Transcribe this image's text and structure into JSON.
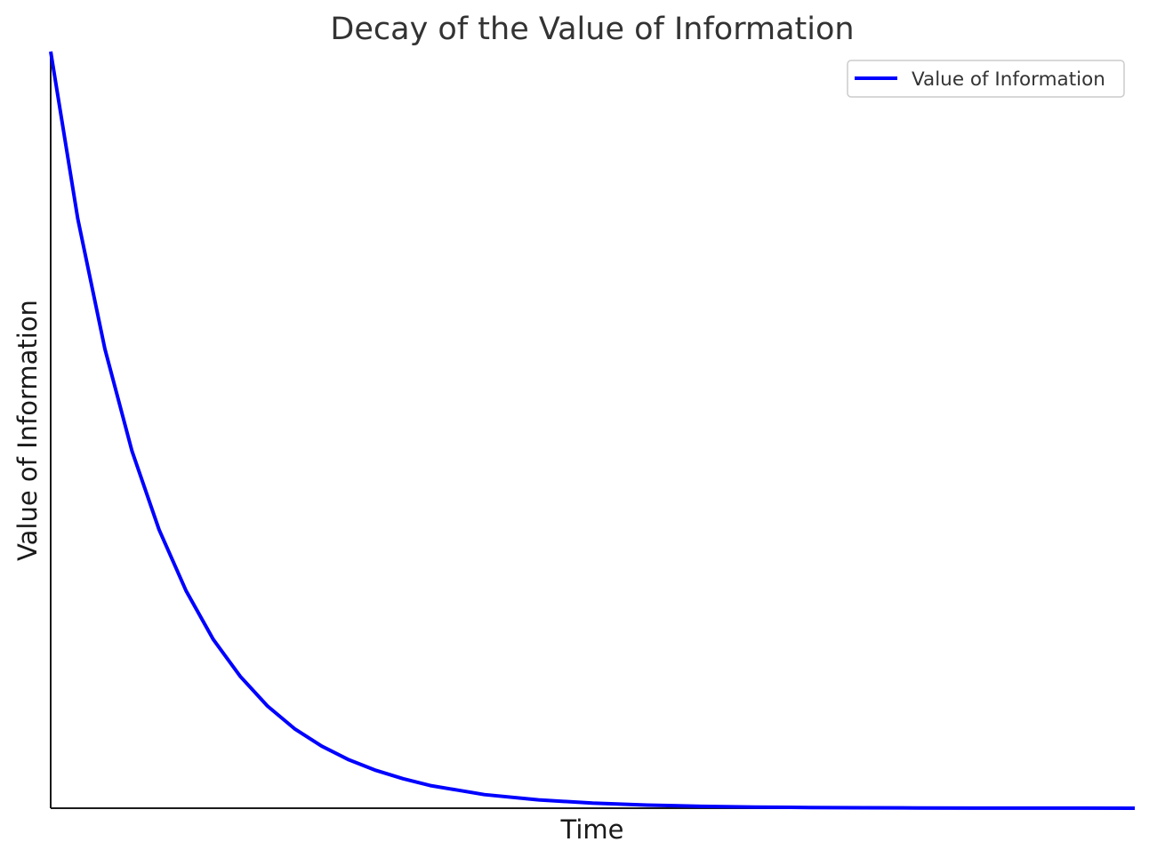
{
  "chart_data": {
    "type": "line",
    "title": "Decay of the Value of Information",
    "xlabel": "Time",
    "ylabel": "Value of Information",
    "x_ticks_shown": false,
    "y_ticks_shown": false,
    "grid": false,
    "legend_position": "top-right",
    "xlim": [
      0,
      10
    ],
    "ylim": [
      0,
      1
    ],
    "series": [
      {
        "name": "Value of Information",
        "color": "#0000ff",
        "x": [
          0,
          0.25,
          0.5,
          0.75,
          1,
          1.25,
          1.5,
          1.75,
          2,
          2.25,
          2.5,
          2.75,
          3,
          3.25,
          3.5,
          3.75,
          4,
          4.5,
          5,
          5.5,
          6,
          6.5,
          7,
          7.5,
          8,
          8.5,
          9,
          9.5,
          10
        ],
        "y": [
          1.0,
          0.779,
          0.607,
          0.472,
          0.368,
          0.287,
          0.223,
          0.174,
          0.135,
          0.105,
          0.082,
          0.064,
          0.05,
          0.039,
          0.03,
          0.024,
          0.018,
          0.011,
          0.0067,
          0.0041,
          0.0025,
          0.0015,
          0.0009,
          0.0006,
          0.0003,
          0.0002,
          0.0001,
          0.0001,
          0.0
        ]
      }
    ]
  },
  "colors": {
    "axis": "#1a1a1a",
    "legend_border": "#cccccc"
  }
}
